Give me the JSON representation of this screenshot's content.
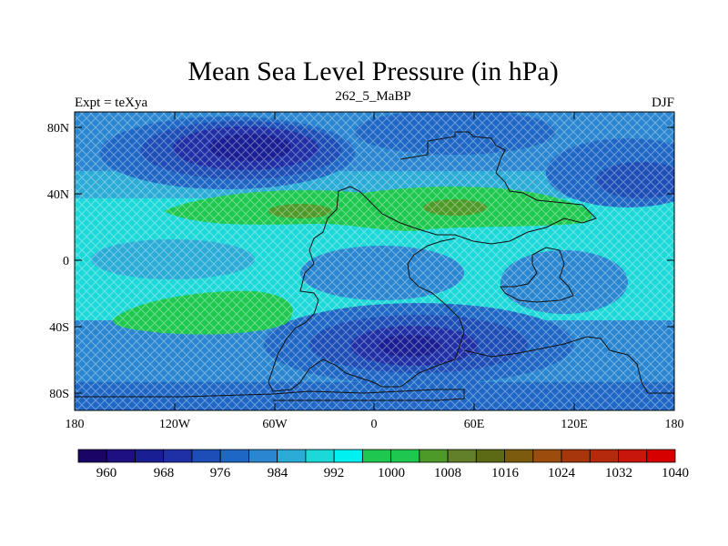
{
  "title": "Mean Sea Level Pressure (in hPa)",
  "left_label": "Expt = teXya",
  "center_label": "262_5_MaBP",
  "right_label": "DJF",
  "lat_ticks": [
    "80N",
    "40N",
    "0",
    "40S",
    "80S"
  ],
  "lon_ticks": [
    "180",
    "120W",
    "60W",
    "0",
    "60E",
    "120E",
    "180"
  ],
  "colorbar": {
    "labels": [
      "960",
      "968",
      "976",
      "984",
      "992",
      "1000",
      "1008",
      "1016",
      "1024",
      "1032",
      "1040"
    ],
    "colors": [
      "#1a0466",
      "#1e0f82",
      "#1a1e93",
      "#1f30a6",
      "#1d4db6",
      "#1e67c4",
      "#2a86d0",
      "#2aacd6",
      "#1dd8d8",
      "#00f0f0",
      "#1ec84e",
      "#1ec84e",
      "#4d9a28",
      "#62802a",
      "#5c6a16",
      "#7b5c0e",
      "#9c4c0c",
      "#a7360a",
      "#b52a0c",
      "#c8160c",
      "#d60000"
    ]
  },
  "map_data": {
    "type": "filled-contour-map",
    "variable": "mean sea level pressure",
    "units": "hPa",
    "lon_range": [
      -180,
      180
    ],
    "lat_range": [
      -90,
      90
    ],
    "regions": [
      {
        "feature": "high-latitude low",
        "lat": [
          50,
          90
        ],
        "lon": [
          -180,
          180
        ],
        "approx_hPa": 966
      },
      {
        "feature": "low",
        "lat": [
          -70,
          -30
        ],
        "lon": [
          -10,
          90
        ],
        "approx_hPa": 968
      },
      {
        "feature": "subtropical high",
        "lat": [
          15,
          40
        ],
        "lon": [
          -120,
          130
        ],
        "approx_hPa": 1010
      },
      {
        "feature": "subtropical high",
        "lat": [
          -45,
          -25
        ],
        "lon": [
          -150,
          -50
        ],
        "approx_hPa": 1008
      },
      {
        "feature": "equatorial band",
        "lat": [
          -15,
          15
        ],
        "lon": [
          -180,
          180
        ],
        "approx_hPa": 1000
      }
    ]
  }
}
